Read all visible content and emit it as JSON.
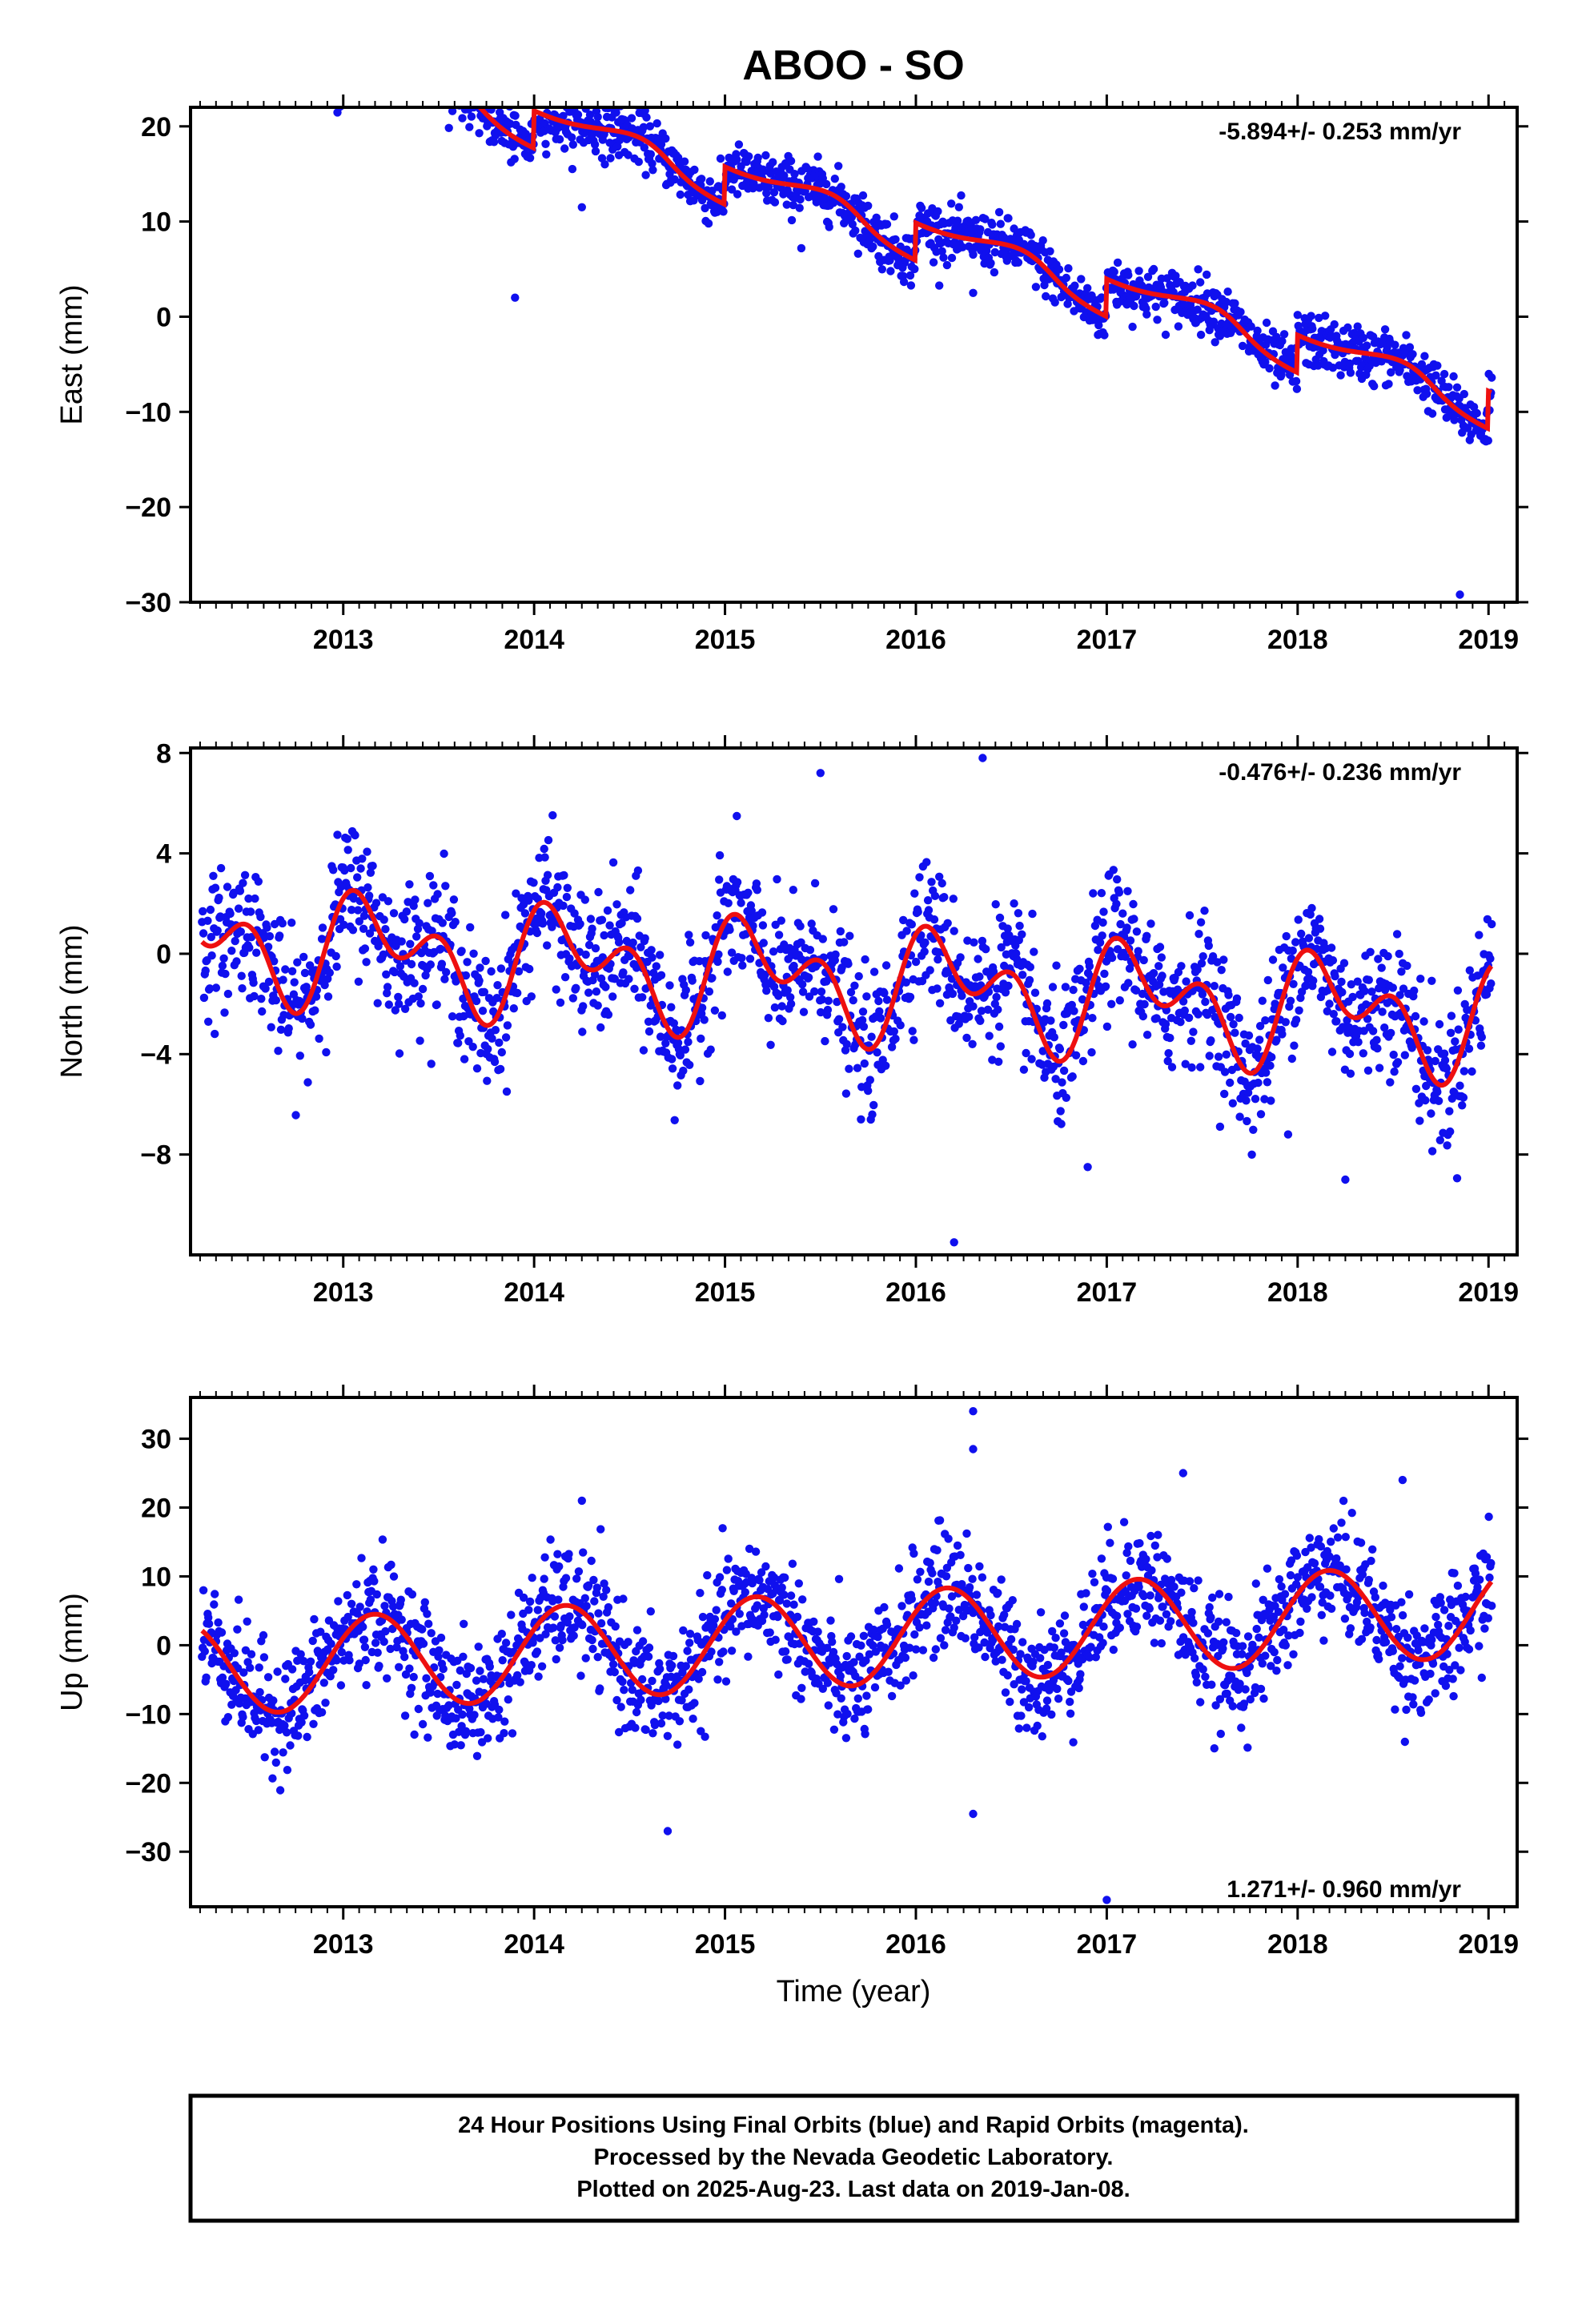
{
  "colors": {
    "points": "#1010ee",
    "model": "#ee1010",
    "frame": "#000000"
  },
  "chart_data": {
    "title": "ABOO - SO",
    "type": "scatter",
    "x_axis": {
      "label": "Time (year)",
      "ticks": [
        2013,
        2014,
        2015,
        2016,
        2017,
        2018,
        2019
      ],
      "range": [
        2012.2,
        2019.15
      ]
    },
    "panels": [
      {
        "name": "east",
        "type": "scatter",
        "ylabel": "East (mm)",
        "yticks": [
          20,
          10,
          0,
          -10,
          -20,
          -30
        ],
        "ylim": [
          -30,
          22
        ],
        "rate": "-5.894+/- 0.253 mm/yr",
        "model": {
          "offset": 27.9,
          "trend": -5.894,
          "t0": 2013.0,
          "ann_amp": 0.6,
          "ann_phase": 3.8,
          "semi_amp": 0.0,
          "semi_phase": 0.0,
          "step_amp": 4.0,
          "step_w": 0.07,
          "step_center": 0.7
        },
        "scatter": {
          "noise": 1.4,
          "outliers": [
            [
              2013.9,
              2.0
            ],
            [
              2014.25,
              11.5
            ],
            [
              2015.4,
              7.2
            ],
            [
              2016.3,
              2.5
            ],
            [
              2018.4,
              -7.3
            ],
            [
              2018.85,
              -29.2
            ]
          ]
        }
      },
      {
        "name": "north",
        "type": "scatter",
        "ylabel": "North (mm)",
        "yticks": [
          8,
          4,
          0,
          -4,
          -8
        ],
        "ylim": [
          -12,
          8.2
        ],
        "rate": "-0.476+/- 0.236 mm/yr",
        "model": {
          "offset": 0.2,
          "trend": -0.476,
          "t0": 2013.0,
          "ann_amp": 1.5,
          "ann_phase": 0.45,
          "semi_amp": 1.4,
          "semi_phase": 1.3,
          "step_amp": 0.0,
          "step_w": 0.1,
          "step_center": 0.0
        },
        "scatter": {
          "noise": 1.35,
          "outliers": [
            [
              2015.5,
              7.2
            ],
            [
              2016.35,
              7.8
            ],
            [
              2016.2,
              -11.5
            ],
            [
              2016.9,
              -8.5
            ],
            [
              2018.25,
              -9.0
            ],
            [
              2017.95,
              -7.2
            ]
          ]
        }
      },
      {
        "name": "up",
        "type": "scatter",
        "ylabel": "Up (mm)",
        "yticks": [
          30,
          20,
          10,
          0,
          -10,
          -20,
          -30
        ],
        "ylim": [
          -38,
          36
        ],
        "rate": "1.271+/- 0.960 mm/yr",
        "model": {
          "offset": -2.5,
          "trend": 1.271,
          "t0": 2013.0,
          "ann_amp": 6.8,
          "ann_phase": 0.55,
          "semi_amp": 0.0,
          "semi_phase": 0.0,
          "step_amp": 0.0,
          "step_w": 0.1,
          "step_center": 0.0
        },
        "scatter": {
          "noise": 4.2,
          "outliers": [
            [
              2016.3,
              34.0
            ],
            [
              2016.3,
              28.5
            ],
            [
              2017.4,
              25.0
            ],
            [
              2014.25,
              21.0
            ],
            [
              2014.7,
              -27.0
            ],
            [
              2016.3,
              -24.5
            ],
            [
              2017.0,
              -37.0
            ],
            [
              2018.55,
              24.0
            ]
          ]
        }
      }
    ]
  },
  "footer": {
    "line1": "24 Hour Positions Using Final Orbits (blue) and Rapid Orbits (magenta).",
    "line2": "Processed by the Nevada Geodetic Laboratory.",
    "line3": "Plotted on 2025-Aug-23. Last data on 2019-Jan-08."
  }
}
